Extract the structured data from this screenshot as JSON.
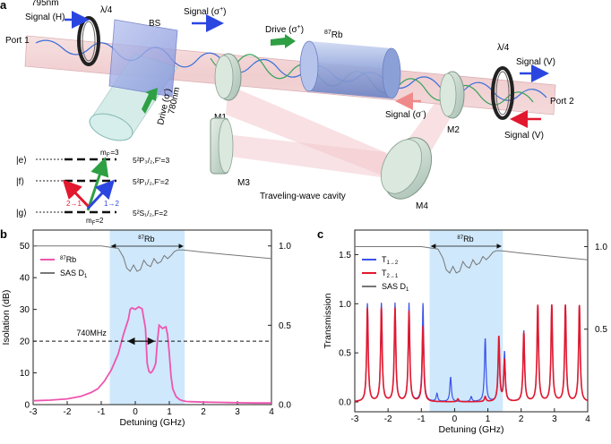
{
  "panel_a": {
    "label": "a",
    "wavelength": "795nm",
    "signal_h": "Signal (H)",
    "qwp1": "λ/4",
    "port1": "Port 1",
    "bs": "BS",
    "signal_sp": "Signal (σ",
    "signal_sp_sup": "+",
    "drive_top": "Drive (σ",
    "drive_top_sup": "+",
    "rb_label": "Rb",
    "rb_sup": "87",
    "drive_side1": "Drive (σ",
    "drive_side_sup": "-",
    "drive_side2": "780nm",
    "m1": "M1",
    "m2": "M2",
    "m3": "M3",
    "m4": "M4",
    "qwp2": "λ/4",
    "signal_v_out": "Signal (V)",
    "port2": "Port 2",
    "signal_sm": "Signal (σ",
    "signal_sm_sup": "-",
    "signal_v_in": "Signal (V)",
    "cavity": "Traveling-wave cavity",
    "levels": {
      "e": "|e⟩",
      "f": "|f⟩",
      "g": "|g⟩",
      "e_state": "5²P₃/₂,F′=3",
      "f_state": "5²P₁/₂,F′=2",
      "g_state": "5²S₁/₂,F=2",
      "mf_top": "m",
      "mf_top_sub": "F′",
      "mf_top_val": "=3",
      "mf_bot": "m",
      "mf_bot_sub": "F",
      "mf_bot_val": "=2",
      "t21": "2→1",
      "t12": "1→2"
    }
  },
  "colors": {
    "pink": "#ee55b0",
    "gray": "#777777",
    "blue": "#3b53ea",
    "red": "#e2182e",
    "band": "#cfe8fb",
    "green": "#2ea043"
  },
  "chart_data": [
    {
      "type": "line",
      "panel": "b",
      "xlabel": "Detuning (GHz)",
      "ylabel": "Isolation (dB)",
      "xlim": [
        -3,
        4
      ],
      "ylim": [
        0,
        55
      ],
      "y2lim": [
        0,
        1.1
      ],
      "xticks": [
        "-3",
        "-2",
        "-1",
        "0",
        "1",
        "2",
        "3",
        "4"
      ],
      "yticks": [
        "0",
        "10",
        "20",
        "30",
        "40",
        "50"
      ],
      "y2ticks": [
        "0.0",
        "0.5",
        "1.0"
      ],
      "highlight_region": [
        -0.75,
        1.45
      ],
      "highlight_label": "Rb",
      "highlight_label_sup": "87",
      "annotation": "740MHz",
      "annotation_level": 20,
      "annotation_span": [
        -0.2,
        0.55
      ],
      "legend_position": "upper-left",
      "series": [
        {
          "name": "Rb",
          "name_sup": "87",
          "axis": "left",
          "x": [
            -3.0,
            -2.5,
            -2.0,
            -1.6,
            -1.3,
            -1.1,
            -0.9,
            -0.7,
            -0.5,
            -0.35,
            -0.2,
            -0.15,
            -0.1,
            0.0,
            0.1,
            0.2,
            0.3,
            0.35,
            0.4,
            0.45,
            0.5,
            0.55,
            0.6,
            0.65,
            0.7,
            0.8,
            0.9,
            0.95,
            1.0,
            1.05,
            1.1,
            1.2,
            1.3,
            1.4,
            1.5,
            1.7,
            2.0,
            2.5,
            3.0,
            3.5,
            4.0
          ],
          "values": [
            1.2,
            1.4,
            1.8,
            2.6,
            3.8,
            5.0,
            7.5,
            11,
            16,
            22,
            27,
            30,
            30.5,
            30,
            30.8,
            30.2,
            24,
            13,
            10.5,
            10,
            10.5,
            11.5,
            13,
            20,
            25,
            24,
            24.5,
            22,
            16,
            9,
            5,
            2.5,
            1.6,
            1.2,
            1.0,
            0.9,
            0.8,
            0.7,
            0.6,
            0.5,
            0.5
          ]
        },
        {
          "name": "SAS D",
          "name_sub": "1",
          "axis": "right",
          "x": [
            -3.0,
            -2.0,
            -1.0,
            -0.5,
            -0.35,
            -0.25,
            -0.15,
            -0.05,
            0.05,
            0.15,
            0.25,
            0.35,
            0.45,
            0.55,
            0.65,
            0.75,
            0.85,
            0.95,
            1.05,
            1.15,
            1.25,
            1.4,
            1.6,
            2.0,
            3.0,
            4.0
          ],
          "values": [
            1.0,
            1.0,
            1.0,
            0.985,
            0.93,
            0.86,
            0.84,
            0.88,
            0.84,
            0.85,
            0.91,
            0.88,
            0.87,
            0.92,
            0.89,
            0.9,
            0.94,
            0.92,
            0.94,
            0.965,
            0.975,
            0.975,
            0.97,
            0.96,
            0.94,
            0.92
          ]
        }
      ]
    },
    {
      "type": "line",
      "panel": "c",
      "xlabel": "Detuning (GHz)",
      "ylabel": "Transmission",
      "xlim": [
        -3,
        4
      ],
      "ylim": [
        -0.1,
        1.75
      ],
      "y2lim": [
        0,
        1.1
      ],
      "xticks": [
        "-3",
        "-2",
        "-1",
        "0",
        "1",
        "2",
        "3",
        "4"
      ],
      "yticks": [
        "0.0",
        "0.5",
        "1.0",
        "1.5"
      ],
      "y2ticks": [
        "0.5",
        "1.0"
      ],
      "highlight_region": [
        -0.75,
        1.45
      ],
      "highlight_label": "Rb",
      "highlight_label_sup": "87",
      "legend_position": "upper-left",
      "series": [
        {
          "name": "T",
          "name_sub": "1→2",
          "axis": "left",
          "peak_x": [
            -2.62,
            -2.2,
            -1.79,
            -1.37,
            -0.95,
            -0.53,
            -0.12,
            0.5,
            0.92,
            1.33,
            1.5,
            2.08,
            2.5,
            2.92,
            3.33,
            3.75
          ],
          "peak_y": [
            1.0,
            1.0,
            1.0,
            1.0,
            1.0,
            0.08,
            0.25,
            0.05,
            0.64,
            0.56,
            0.5,
            0.72,
            0.98,
            0.98,
            0.98,
            0.98
          ]
        },
        {
          "name": "T",
          "name_sub": "2→1",
          "axis": "left",
          "peak_x": [
            -2.62,
            -2.2,
            -1.79,
            -1.37,
            -0.95,
            0.1,
            0.92,
            1.33,
            1.5,
            2.08,
            2.5,
            2.92,
            3.33,
            3.75
          ],
          "peak_y": [
            0.95,
            0.95,
            0.95,
            0.92,
            0.77,
            0.03,
            0.05,
            0.66,
            0.42,
            0.7,
            0.98,
            0.98,
            0.98,
            0.98
          ]
        },
        {
          "name": "SAS D",
          "name_sub": "1",
          "axis": "right",
          "x": [
            -3.0,
            -2.0,
            -1.0,
            -0.5,
            -0.35,
            -0.25,
            -0.15,
            -0.05,
            0.05,
            0.15,
            0.25,
            0.35,
            0.45,
            0.55,
            0.65,
            0.75,
            0.85,
            0.95,
            1.05,
            1.15,
            1.25,
            1.4,
            1.6,
            2.0,
            3.0,
            4.0
          ],
          "values": [
            1.0,
            1.0,
            1.0,
            0.985,
            0.93,
            0.86,
            0.84,
            0.88,
            0.84,
            0.85,
            0.91,
            0.88,
            0.87,
            0.92,
            0.89,
            0.9,
            0.94,
            0.92,
            0.94,
            0.965,
            0.975,
            0.975,
            0.97,
            0.96,
            0.94,
            0.92
          ]
        }
      ]
    }
  ]
}
